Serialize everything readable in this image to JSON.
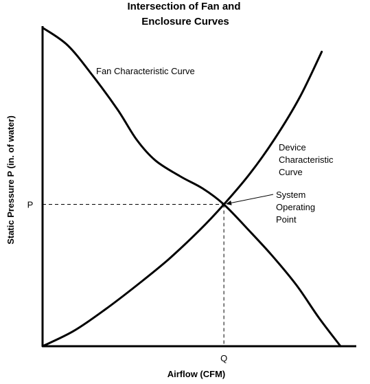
{
  "chart_data": {
    "type": "line",
    "title_lines": [
      "Intersection of Fan and",
      "Enclosure Curves"
    ],
    "xlabel": "Airflow (CFM)",
    "ylabel": "Static Pressure P (in. of water)",
    "xlim": [
      0,
      1
    ],
    "ylim": [
      0,
      1
    ],
    "grid": false,
    "x_ticks": [
      {
        "value": 0.578,
        "label": "Q"
      }
    ],
    "y_ticks": [
      {
        "value": 0.443,
        "label": "P"
      }
    ],
    "series": [
      {
        "name": "Fan Characteristic Curve",
        "label_lines": [
          "Fan Characteristic Curve"
        ],
        "color": "#000000",
        "x": [
          0.0,
          0.08,
          0.16,
          0.24,
          0.3,
          0.36,
          0.44,
          0.51,
          0.578,
          0.65,
          0.73,
          0.81,
          0.88,
          0.95
        ],
        "y": [
          0.995,
          0.94,
          0.845,
          0.738,
          0.645,
          0.58,
          0.53,
          0.493,
          0.443,
          0.37,
          0.285,
          0.19,
          0.09,
          0.0
        ]
      },
      {
        "name": "Device Characteristic Curve",
        "label_lines": [
          "Device",
          "Characteristic",
          "Curve"
        ],
        "color": "#000000",
        "x": [
          0.0,
          0.1,
          0.2,
          0.3,
          0.4,
          0.5,
          0.578,
          0.66,
          0.74,
          0.82,
          0.89
        ],
        "y": [
          0.0,
          0.048,
          0.115,
          0.19,
          0.27,
          0.362,
          0.443,
          0.538,
          0.648,
          0.778,
          0.92
        ]
      }
    ],
    "annotations": [
      {
        "label_lines": [
          "System",
          "Operating",
          "Point"
        ],
        "target": [
          0.578,
          0.443
        ]
      }
    ]
  }
}
